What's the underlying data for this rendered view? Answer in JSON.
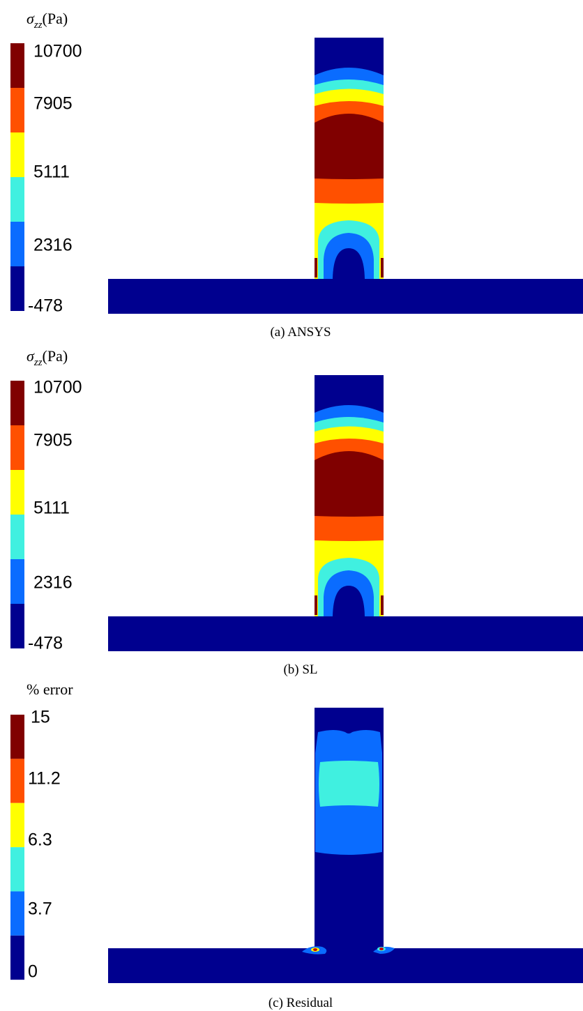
{
  "panels": [
    {
      "colorbar": {
        "title": {
          "symbol": "σ",
          "subscript": "zz",
          "unit": "(Pa)"
        },
        "labels": [
          10700,
          7905,
          5111,
          2316,
          -478
        ]
      },
      "caption": "(a) ANSYS"
    },
    {
      "colorbar": {
        "title": {
          "symbol": "σ",
          "subscript": "zz",
          "unit": "(Pa)"
        },
        "labels": [
          10700,
          7905,
          5111,
          2316,
          -478
        ]
      },
      "caption": "(b) SL"
    },
    {
      "colorbar": {
        "title": {
          "text": "% error"
        },
        "labels": [
          15,
          11.2,
          6.3,
          3.7,
          0
        ]
      },
      "caption": "(c) Residual"
    }
  ]
}
